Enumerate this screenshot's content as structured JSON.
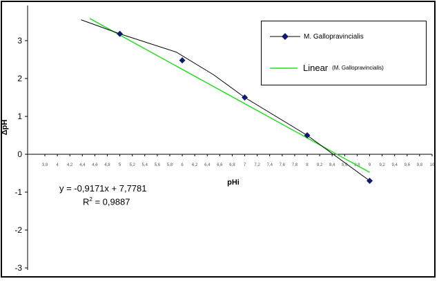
{
  "chart_data": {
    "type": "line",
    "ylabel": "ΔpH",
    "xlabel": "pHi",
    "xlim": [
      3.8,
      10
    ],
    "ylim": [
      -3,
      3.5
    ],
    "x_ticks": [
      "3.8",
      "4",
      "4.2",
      "4.4",
      "4.6",
      "4.8",
      "5",
      "5.2",
      "5.4",
      "5.6",
      "5.8",
      "6",
      "6.2",
      "6.4",
      "6.6",
      "6.8",
      "7",
      "7.2",
      "7.4",
      "7.6",
      "7.8",
      "8",
      "8.2",
      "8.4",
      "8.6",
      "8.8",
      "9",
      "9.2",
      "9.4",
      "9.6",
      "9.8",
      "10"
    ],
    "x_tick_labels_shown": [
      "3,8",
      "4",
      "4,2",
      "4,4",
      "4,6",
      "4,8",
      "5",
      "5,2",
      "5,4",
      "5,6",
      "5,8",
      "6",
      "6,2",
      "6,4",
      "6,6",
      "6,8",
      "7",
      "7,2",
      "7,4",
      "7,6",
      "7,8",
      "8",
      "8,2",
      "8,4",
      "8,6",
      "8,8",
      "9",
      "9,2",
      "9,4",
      "9,6",
      "9,8",
      "10"
    ],
    "y_ticks": [
      "-3",
      "-2",
      "-1",
      "0",
      "1",
      "2",
      "3"
    ],
    "grid": false,
    "legend_position": "top-right",
    "series": [
      {
        "name": "M. Gallopravincialis",
        "legend_label": "M. Gallopravincialis",
        "color": "#000000",
        "marker_color": "#0d1a6e",
        "marker": "diamond",
        "points": [
          [
            5,
            3.18
          ],
          [
            6,
            2.48
          ],
          [
            7,
            1.5
          ],
          [
            8,
            0.5
          ],
          [
            9,
            -0.7
          ]
        ],
        "line_extension": [
          [
            4.38,
            3.55
          ],
          [
            5,
            3.18
          ],
          [
            5.9,
            2.7
          ],
          [
            6.5,
            2.1
          ],
          [
            7,
            1.5
          ],
          [
            8,
            0.5
          ],
          [
            9,
            -0.7
          ]
        ]
      },
      {
        "name": "Linear (M. Gallopravincialis)",
        "legend_label_main": "Linear",
        "legend_label_paren": "(M. Gallopravincialis)",
        "color": "#22dd22",
        "trendline": {
          "slope": -0.9171,
          "intercept": 7.7781,
          "x_range": [
            4.85,
            9.0
          ]
        }
      }
    ],
    "annotations": {
      "equation": "y = -0,9171x + 7,7781",
      "r2_prefix": "R",
      "r2_sup": "2",
      "r2_value": " = 0,9887"
    }
  }
}
